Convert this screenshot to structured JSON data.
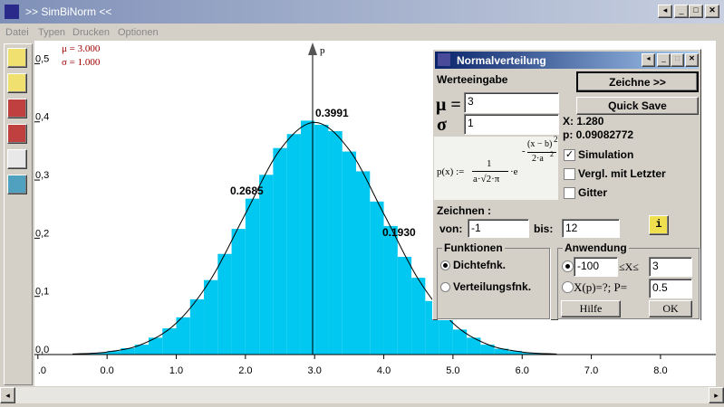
{
  "window": {
    "title": ">> SimBiNorm <<",
    "menu": [
      "Datei",
      "Typen",
      "Drucken",
      "Optionen"
    ]
  },
  "chart_data": {
    "type": "histogram",
    "params": [
      "μ = 3.000",
      "σ = 1.000"
    ],
    "y_label": "p",
    "bins": [
      -0.4,
      -0.2,
      0,
      0.2,
      0.4,
      0.6,
      0.8,
      1,
      1.2,
      1.4,
      1.6,
      1.8,
      2,
      2.2,
      2.4,
      2.6,
      2.8,
      3,
      3.2,
      3.4,
      3.6,
      3.8,
      4,
      4.2,
      4.4,
      4.6,
      4.8,
      5,
      5.2,
      5.4,
      5.6,
      5.8,
      6,
      6.2,
      6.4
    ],
    "values": [
      0.002,
      0.003,
      0.006,
      0.011,
      0.017,
      0.029,
      0.045,
      0.064,
      0.095,
      0.128,
      0.173,
      0.216,
      0.268,
      0.309,
      0.355,
      0.379,
      0.402,
      0.395,
      0.384,
      0.349,
      0.315,
      0.263,
      0.221,
      0.168,
      0.132,
      0.092,
      0.067,
      0.043,
      0.029,
      0.017,
      0.01,
      0.006,
      0.003,
      0.002
    ],
    "color": "#00c8f0",
    "curve": {
      "x": [
        -0.5,
        0,
        0.5,
        1,
        1.5,
        2,
        2.5,
        3,
        3.5,
        4,
        4.5,
        5,
        5.5,
        6,
        6.5
      ],
      "y": [
        0.0009,
        0.0044,
        0.0175,
        0.054,
        0.1295,
        0.242,
        0.352,
        0.399,
        0.352,
        0.242,
        0.1295,
        0.054,
        0.0175,
        0.0044,
        0.0009
      ],
      "color": "#000000"
    },
    "annotations": [
      "0.3991",
      "0.2685",
      "0.1930"
    ],
    "xlim": [
      -1.05,
      8.8
    ],
    "xticks": [
      {
        "value": -1,
        "label": ".0"
      },
      {
        "value": 0,
        "label": "0.0"
      },
      {
        "value": 1,
        "label": "1.0"
      },
      {
        "value": 2,
        "label": "2.0"
      },
      {
        "value": 3,
        "label": "3.0"
      },
      {
        "value": 4,
        "label": "4.0"
      },
      {
        "value": 5,
        "label": "5.0"
      },
      {
        "value": 6,
        "label": "6.0"
      },
      {
        "value": 7,
        "label": "7.0"
      },
      {
        "value": 8,
        "label": "8.0"
      }
    ],
    "ylim": [
      -0.0124,
      0.5395
    ],
    "yticks": [
      {
        "value": 0,
        "label": "0,0"
      },
      {
        "value": 0.1,
        "label": "0,1"
      },
      {
        "value": 0.2,
        "label": "0,2"
      },
      {
        "value": 0.3,
        "label": "0,3"
      },
      {
        "value": 0.4,
        "label": "0,4"
      },
      {
        "value": 0.5,
        "label": "0,5"
      }
    ]
  },
  "dialog": {
    "title": "Normalverteilung",
    "input_heading": "Werteeingabe",
    "draw_button": "Zeichne >>",
    "quick_save": "Quick Save",
    "mu_label": "μ =",
    "mu_value": "3",
    "sigma_label": "σ",
    "sigma_value": "1",
    "x_readout": "X: 1.280",
    "p_readout": "p: 0.09082772",
    "formula": {
      "lhs": "p(x) :=",
      "numerator": "1",
      "denominator": "a·√2·π",
      "dot": "·e",
      "exp_num": "(x − b)",
      "exp_pow": "2",
      "exp_den": "2·a",
      "exp_den_pow": "2"
    },
    "checkboxes": [
      {
        "label": "Simulation",
        "checked": true
      },
      {
        "label": "Vergl. mit Letzter",
        "checked": false
      },
      {
        "label": "Gitter",
        "checked": false
      }
    ],
    "range_heading": "Zeichnen :",
    "from_label": "von:",
    "from_value": "-1",
    "to_label": "bis:",
    "to_value": "12",
    "info_button": "i",
    "functions": {
      "title": "Funktionen",
      "options": [
        {
          "label": "Dichtefnk.",
          "selected": true
        },
        {
          "label": "Verteilungsfnk.",
          "selected": false
        }
      ]
    },
    "application": {
      "title": "Anwendung",
      "lower": "-100",
      "between": "≤X≤",
      "upper": "3",
      "quantile_label": "X(p)=?; P=",
      "p_value": "0.5",
      "help": "Hilfe",
      "ok": "OK"
    }
  }
}
